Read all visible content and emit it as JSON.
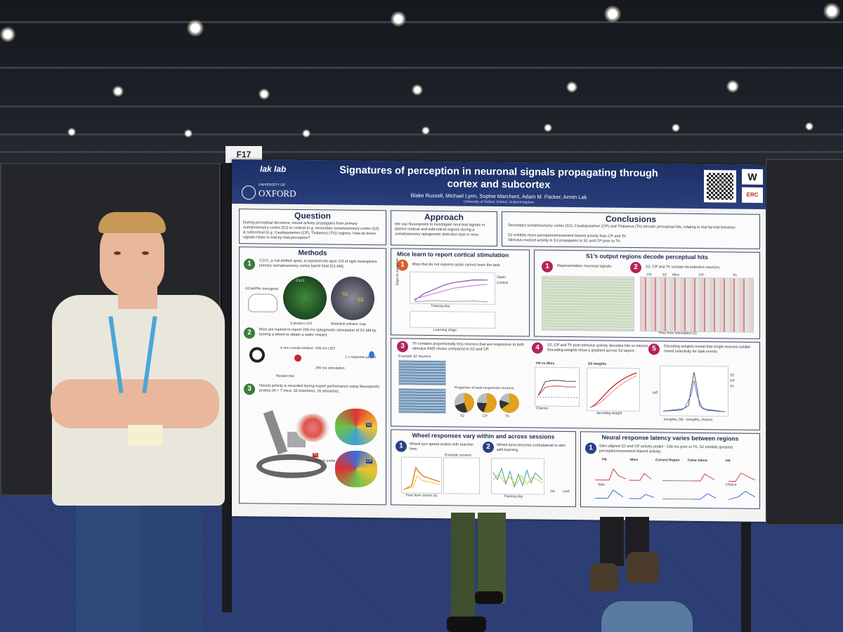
{
  "booth": {
    "number": "F17"
  },
  "poster": {
    "lab_logo": "lak lab",
    "university": "UNIVERSITY OF",
    "university_name": "OXFORD",
    "title_line1": "Signatures of perception in neuronal signals propagating through",
    "title_line2": "cortex and subcortex",
    "authors": "Blake Russell, Michael Lynn, Sophie Marchent, Adam M. Packer, Armin Lak",
    "affiliation": "University of Oxford, Oxford, United Kingdom",
    "sponsor_logo": "W",
    "sponsor_logo_2": "ERC",
    "question": {
      "title": "Question",
      "text": "During perceptual decisions, neural activity propagates from primary somatosensory cortex (S1) to cortical (e.g. secondary somatosensory cortex (S2) & subcortical (e.g. Caudoputamen (CP), Thalamus (Th)) regions. How do these signals relate to trial-by-trial perception?"
    },
    "approach": {
      "title": "Approach",
      "text": "We use Neuropixels to investigate neuronal signals in distinct cortical and subcortical regions during a somatosensory optogenetic detection task in mice."
    },
    "conclusions": {
      "title": "Conclusions",
      "items": [
        "Secondary somatosensory cortex (S2), Caudoputamen (CP) and Thalamus (Th) decode perceptual hits, relating to trial-by-trial behavior.",
        "S2 exhibits more perception/movement biased activity than CP and Th.",
        "Stimulus-evoked activity in S1 propagates to S2 and CP prior to Th."
      ]
    },
    "methods": {
      "title": "Methods",
      "steps": [
        {
          "num": "1",
          "text": "C1V1, a red-shifted opsin, is injected into layer 2/3 of right hemisphere primary somatosensory cortex barrel field (S1-bfd)."
        },
        {
          "num": "2",
          "text": "Mice are trained to report 200 ms optogenetic stimulation of S1-bfd by turning a wheel to obtain a water reward."
        },
        {
          "num": "3",
          "text": "Neural activity is recorded during expert performance using Neuropixels probes (N = 7 mice, 32 insertions, 26 sessions)."
        }
      ],
      "labels": [
        "GCaMP6s transgenic",
        "C1V1",
        "2-photon L2/3",
        "S1",
        "S2",
        "Widefield whisker map",
        "4 mm cranial window",
        "4 - 6 s wait period",
        "530 nm LED",
        "200 ms stimulation",
        "1 s response period",
        "Restart trial",
        "Neuropixels probe",
        "S2",
        "CP",
        "Th"
      ]
    },
    "learn": {
      "title": "Mice learn to report cortical stimulation",
      "num": "1",
      "text": "Mice that do not express opsin cannot learn the task.",
      "labels": [
        "Days to complete",
        "Training day",
        "Learning stage",
        "Opsin",
        "Control",
        "Threshold for stage progression"
      ]
    },
    "s1": {
      "title": "S1's output regions decode perceptual hits",
      "p1": {
        "num": "1",
        "text": "Representative neuronal signals."
      },
      "p2": {
        "num": "2",
        "text": "S2, CP and Th contain hit-selective neurons."
      },
      "p2_labels": [
        "Hit",
        "S2",
        "Miss",
        "CP",
        "Th",
        "Neurons sorted by hit selectivity",
        "Time from stimulation (s)"
      ]
    },
    "th": {
      "num": "3",
      "text": "Th contains proportionally less neurons that are responsive to both stimulus AND choice compared to S2 and CP.",
      "labels": [
        "Example S2 neurons",
        "Stim",
        "Choice",
        "Proportion of task-responsive neurons",
        "S2",
        "CP",
        "Th"
      ]
    },
    "decode": {
      "num": "4",
      "text": "S2, CP and Th post-stimulus activity decodes hits vs misses. Decoding weights show a gradient across S2 layers.",
      "labels": [
        "Hit vs Miss",
        "S2 weights",
        "Chance",
        "decoding weight"
      ]
    },
    "weights": {
      "num": "5",
      "text": "Decoding weights reveal that single neurons exhibit mixed selectivity for task events",
      "labels": [
        "S2",
        "CP",
        "Th",
        "pdf",
        "|weights_hit| - |weights_choice|"
      ]
    },
    "wheel": {
      "title": "Wheel responses vary within and across sessions",
      "p1": {
        "num": "1",
        "text": "Wheel turn speed scales with reaction time."
      },
      "p2": {
        "num": "2",
        "text": "Wheel turns become contralateral to stim with learning."
      },
      "labels": [
        "Paw movement (Euclidean distance)",
        "Time from choice (s)",
        "Example session",
        "Training day",
        "Ipsilateral choice",
        "1st",
        "Last"
      ]
    },
    "latency": {
      "title": "Neural response latency varies between regions",
      "p1": {
        "num": "1",
        "text": "Stim-aligned S2 and CP activity peaks ~100 ms prior to Th. S2 exhibits greatest perception/movement biased activity."
      },
      "columns": [
        "Hit",
        "Miss",
        "Correct Reject",
        "False Alarm",
        "Hit"
      ],
      "row_labels": [
        "Stim",
        "Choice"
      ]
    }
  },
  "colors": {
    "poster_header": "#1c2f66",
    "badge_green": "#3d7a3a",
    "badge_orange": "#d8612a",
    "badge_red": "#b5235a",
    "badge_navy": "#2b3f86",
    "floor": "#2e4078"
  }
}
